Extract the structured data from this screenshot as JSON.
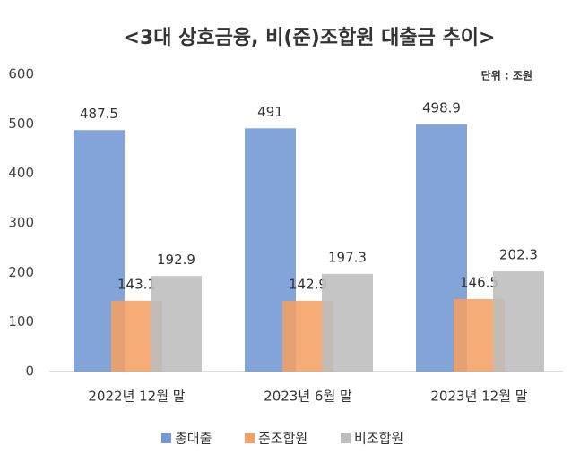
{
  "chart_data": {
    "type": "bar",
    "title": "<3대 상호금융, 비(준)조합원 대출금 추이>",
    "unit_label": "단위 : 조원",
    "categories": [
      "2022년 12월 말",
      "2023년 6월 말",
      "2023년 12월 말"
    ],
    "series": [
      {
        "name": "총대출",
        "color": "#7297d3",
        "values": [
          487.5,
          491,
          498.9
        ]
      },
      {
        "name": "준조합원",
        "color": "#f4a163",
        "values": [
          143.1,
          142.9,
          146.5
        ]
      },
      {
        "name": "비조합원",
        "color": "#bdbdbd",
        "values": [
          192.9,
          197.3,
          202.3
        ]
      }
    ],
    "ylim": [
      0,
      600
    ],
    "yticks": [
      0,
      100,
      200,
      300,
      400,
      500,
      600
    ]
  }
}
